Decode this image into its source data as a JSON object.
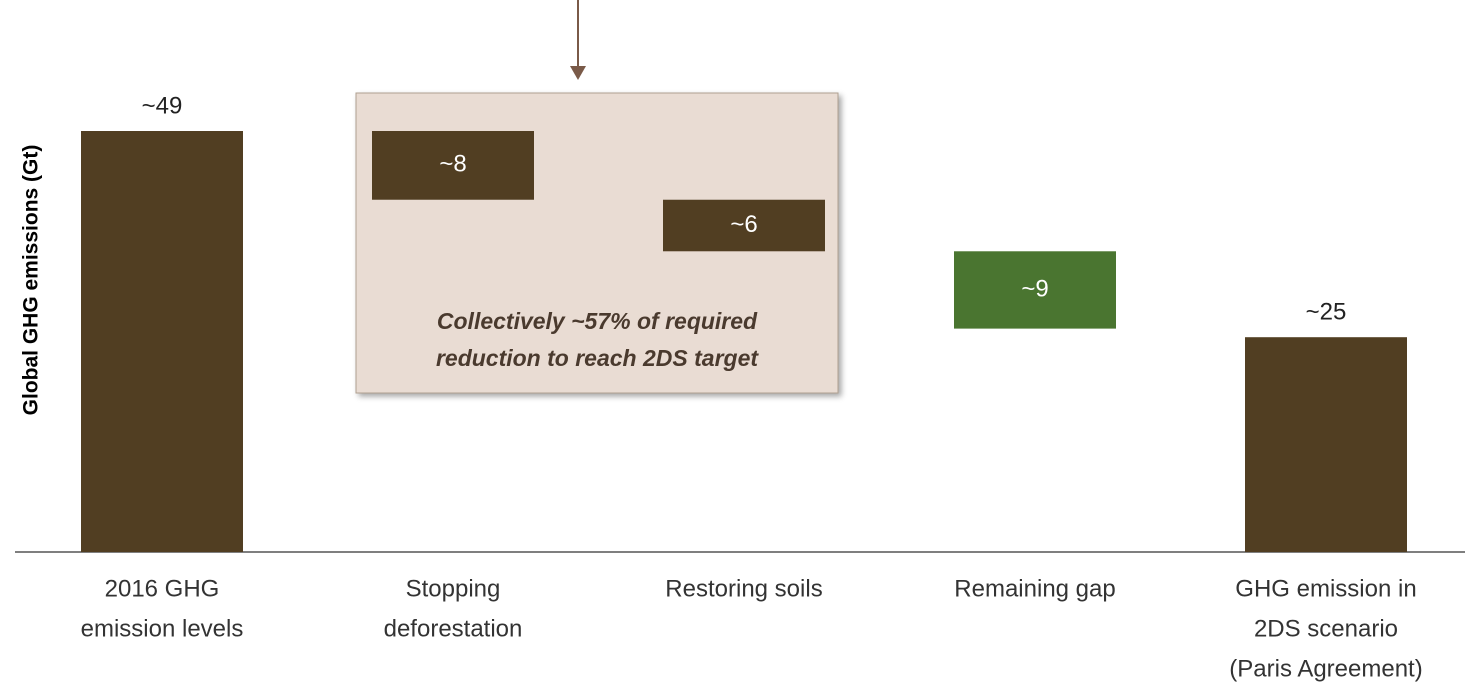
{
  "chart_data": {
    "type": "waterfall",
    "y_label": "Global GHG emissions (Gt)",
    "categories": [
      [
        "2016 GHG",
        "emission levels"
      ],
      [
        "Stopping",
        "deforestation"
      ],
      [
        "Restoring soils"
      ],
      [
        "Remaining gap"
      ],
      [
        "GHG emission in",
        "2DS scenario",
        "(Paris Agreement)"
      ]
    ],
    "values": [
      49,
      8,
      6,
      9,
      25
    ],
    "value_labels": [
      "~49",
      "~8",
      "~6",
      "~9",
      "~25"
    ],
    "kinds": [
      "total",
      "decrease",
      "decrease",
      "decrease",
      "total"
    ],
    "colors": [
      "#513e22",
      "#513e22",
      "#513e22",
      "#4a7530",
      "#513e22"
    ],
    "annotation": [
      "Collectively ~57% of required",
      "reduction to reach 2DS target"
    ]
  }
}
